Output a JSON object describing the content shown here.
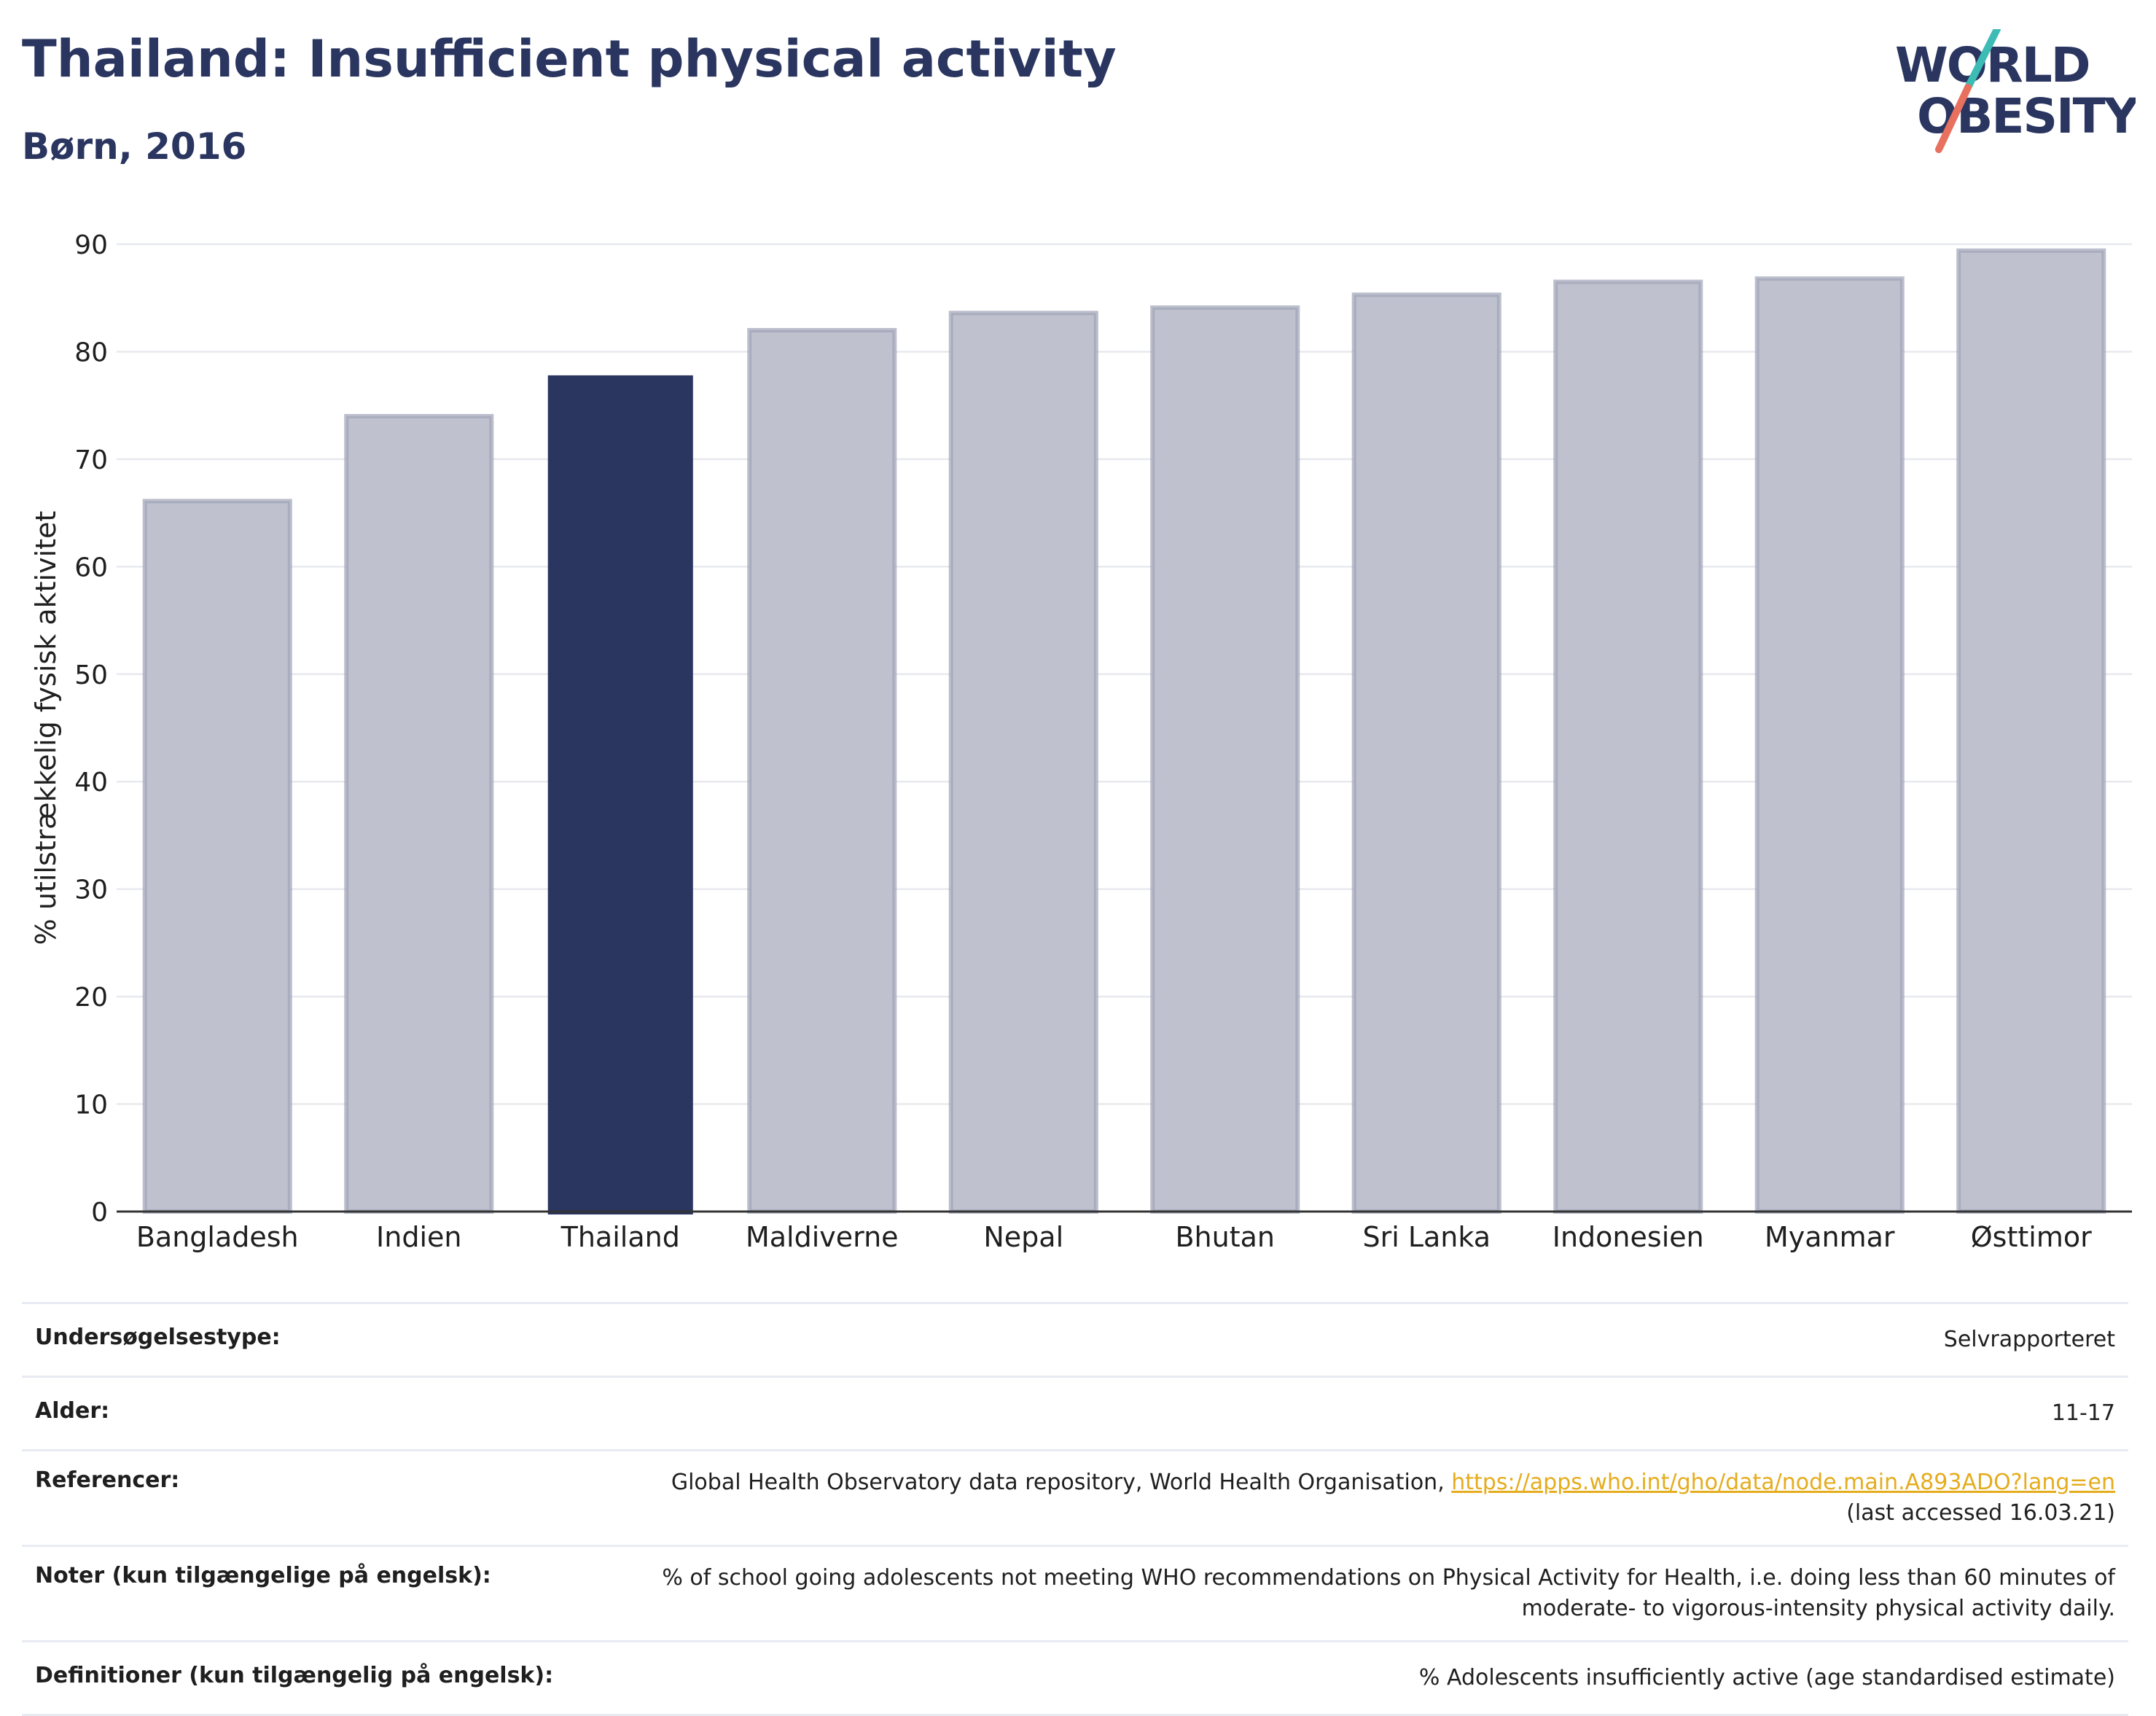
{
  "header": {
    "title": "Thailand: Insufficient physical activity",
    "subtitle": "Børn, 2016"
  },
  "logo": {
    "line1": "WORLD",
    "line2": "OBESITY",
    "slash_colors": [
      "#3dbbb5",
      "#e8705e"
    ],
    "text_color": "#2a3560"
  },
  "colors": {
    "highlight": "#2a3560",
    "other": "#bfc2ce",
    "other_stroke": "#9ea2b6",
    "link": "#e5ac1d"
  },
  "chart_data": {
    "type": "bar",
    "title": "Thailand: Insufficient physical activity",
    "subtitle": "Børn, 2016",
    "xlabel": "",
    "ylabel": "% utilstrækkelig fysisk aktivitet",
    "ylim": [
      0,
      90
    ],
    "yticks": [
      0,
      10,
      20,
      30,
      40,
      50,
      60,
      70,
      80,
      90
    ],
    "grid": true,
    "highlight_category": "Thailand",
    "categories": [
      "Bangladesh",
      "Indien",
      "Thailand",
      "Maldiverne",
      "Nepal",
      "Bhutan",
      "Sri Lanka",
      "Indonesien",
      "Myanmar",
      "Østtimor"
    ],
    "values": [
      66.1,
      74.0,
      77.8,
      82.0,
      83.6,
      84.1,
      85.3,
      86.5,
      86.8,
      89.4
    ]
  },
  "meta": {
    "survey_type_label": "Undersøgelsestype:",
    "survey_type_value": "Selvrapporteret",
    "age_label": "Alder:",
    "age_value": "11-17",
    "references_label": "Referencer:",
    "references_text": "Global Health Observatory data repository, World Health Organisation, ",
    "references_link": "https://apps.who.int/gho/data/node.main.A893ADO?lang=en",
    "references_accessed": "(last accessed 16.03.21)",
    "notes_label": "Noter (kun tilgængelige på engelsk):",
    "notes_line1": "% of school going adolescents not meeting WHO recommendations on Physical Activity for Health, i.e. doing less than 60 minutes of",
    "notes_line2": "moderate- to vigorous-intensity physical activity daily.",
    "definitions_label": "Definitioner (kun tilgængelig på engelsk):",
    "definitions_value": "% Adolescents insufficiently active (age standardised estimate)"
  }
}
